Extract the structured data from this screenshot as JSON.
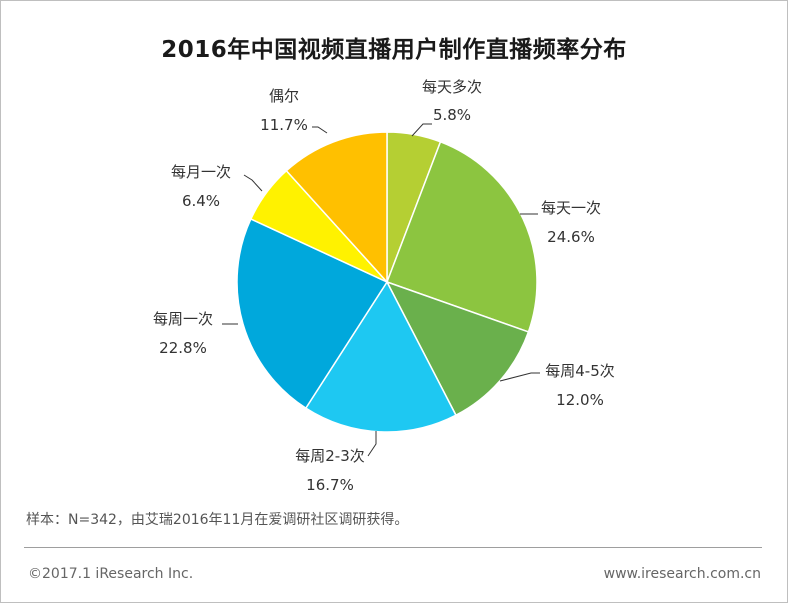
{
  "chart_data": {
    "type": "pie",
    "title": "2016年中国视频直播用户制作直播频率分布",
    "slices": [
      {
        "label": "每天多次",
        "value": 5.8,
        "display": "5.8%",
        "color": "#b5cf33"
      },
      {
        "label": "每天一次",
        "value": 24.6,
        "display": "24.6%",
        "color": "#8cc540"
      },
      {
        "label": "每周4-5次",
        "value": 12.0,
        "display": "12.0%",
        "color": "#6ab04c"
      },
      {
        "label": "每周2-3次",
        "value": 16.7,
        "display": "16.7%",
        "color": "#1ec8f2"
      },
      {
        "label": "每周一次",
        "value": 22.8,
        "display": "22.8%",
        "color": "#00a8dc"
      },
      {
        "label": "每月一次",
        "value": 6.4,
        "display": "6.4%",
        "color": "#fff200"
      },
      {
        "label": "偶尔",
        "value": 11.7,
        "display": "11.7%",
        "color": "#ffc000"
      }
    ]
  },
  "note": "样本：N=342，由艾瑞2016年11月在爱调研社区调研获得。",
  "footer": {
    "copyright": "©2017.1 iResearch Inc.",
    "website": "www.iresearch.com.cn"
  }
}
